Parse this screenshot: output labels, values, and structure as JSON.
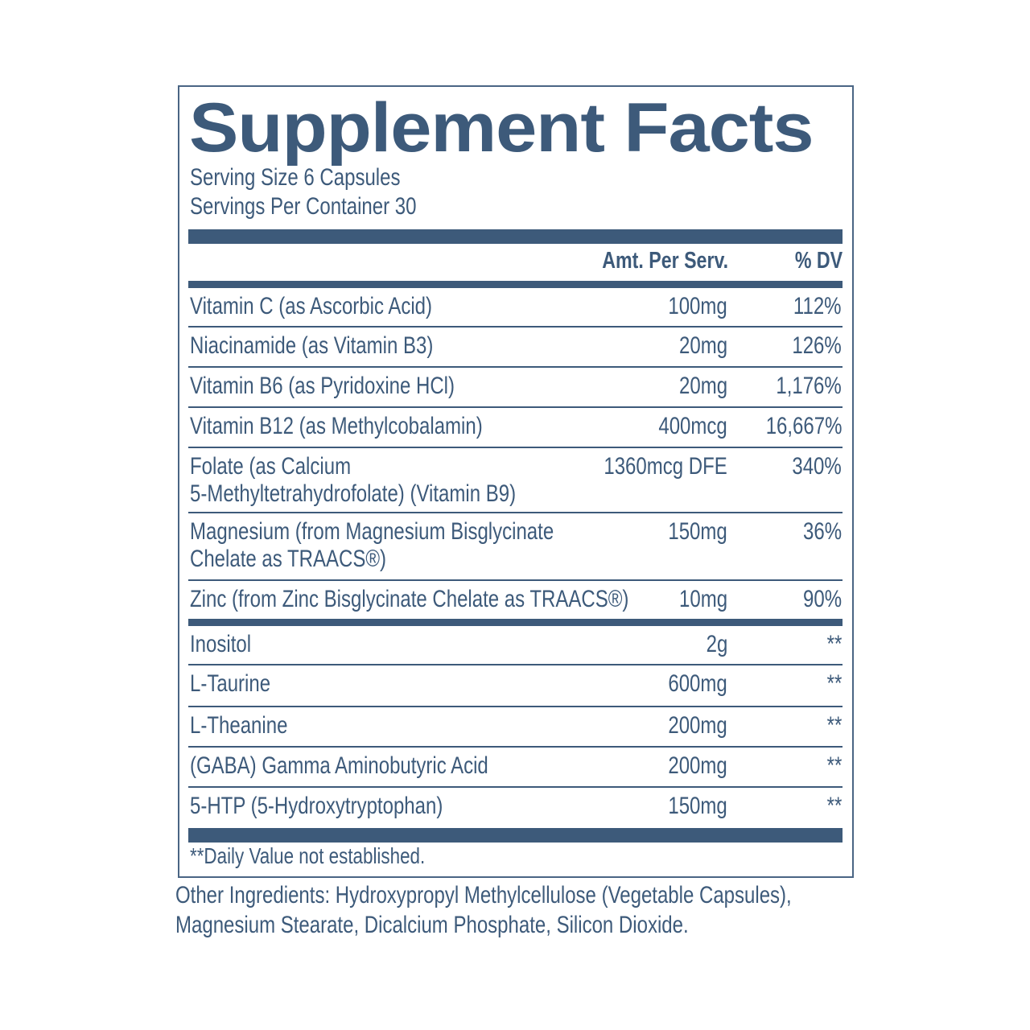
{
  "title": "Supplement Facts",
  "serving_size": "Serving Size 6 Capsules",
  "servings_per_container": "Servings Per Container 30",
  "columns": {
    "amount": "Amt. Per Serv.",
    "dv": "% DV"
  },
  "vitamins": [
    {
      "name": "Vitamin C (as Ascorbic Acid)",
      "amount": "100mg",
      "dv": "112%"
    },
    {
      "name": "Niacinamide (as Vitamin B3)",
      "amount": "20mg",
      "dv": "126%"
    },
    {
      "name": "Vitamin B6 (as Pyridoxine HCl)",
      "amount": "20mg",
      "dv": "1,176%"
    },
    {
      "name": "Vitamin B12 (as Methylcobalamin)",
      "amount": "400mcg",
      "dv": "16,667%"
    },
    {
      "name": "Folate (as Calcium",
      "name2": "5-Methyltetrahydrofolate) (Vitamin B9)",
      "amount": "1360mcg DFE",
      "dv": "340%"
    },
    {
      "name": "Magnesium (from Magnesium Bisglycinate",
      "name2": "Chelate as TRAACS®)",
      "amount": "150mg",
      "dv": "36%"
    },
    {
      "name": "Zinc (from Zinc Bisglycinate Chelate as TRAACS®)",
      "amount": "10mg",
      "dv": "90%"
    }
  ],
  "others": [
    {
      "name": "Inositol",
      "amount": "2g",
      "dv": "**"
    },
    {
      "name": "L-Taurine",
      "amount": "600mg",
      "dv": "**"
    },
    {
      "name": "L-Theanine",
      "amount": "200mg",
      "dv": "**"
    },
    {
      "name": "(GABA) Gamma Aminobutyric Acid",
      "amount": "200mg",
      "dv": "**"
    },
    {
      "name": "5-HTP (5-Hydroxytryptophan)",
      "amount": "150mg",
      "dv": "**"
    }
  ],
  "footnote": "**Daily Value not established.",
  "other_ingredients": "Other Ingredients: Hydroxypropyl Methylcellulose (Vegetable Capsules), Magnesium Stearate, Dicalcium Phosphate, Silicon Dioxide.",
  "colors": {
    "ink": "#3d5a7a"
  }
}
